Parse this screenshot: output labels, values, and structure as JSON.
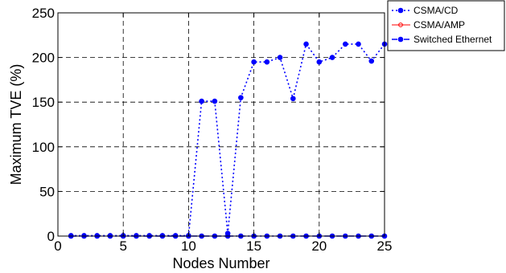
{
  "chart_data": {
    "type": "line",
    "title": "",
    "xlabel": "Nodes Number",
    "ylabel": "Maximum TVE (%)",
    "xlim": [
      0,
      25
    ],
    "ylim": [
      0,
      250
    ],
    "xticks": [
      0,
      5,
      10,
      15,
      20,
      25
    ],
    "yticks": [
      0,
      50,
      100,
      150,
      200,
      250
    ],
    "grid": true,
    "legend_position": "top-right",
    "x": [
      1,
      2,
      3,
      4,
      5,
      6,
      7,
      8,
      9,
      10,
      11,
      12,
      13,
      14,
      15,
      16,
      17,
      18,
      19,
      20,
      21,
      22,
      23,
      24,
      25
    ],
    "series": [
      {
        "name": "CSMA/CD",
        "color": "#0000ff",
        "line_style": "dotted",
        "marker": "filled-circle",
        "values": [
          0.5,
          0.5,
          0.5,
          0.5,
          0.5,
          0.5,
          0.5,
          0.5,
          0.5,
          0.5,
          151,
          151,
          3,
          155,
          195,
          195,
          200,
          154,
          215,
          195,
          200,
          215,
          215,
          196,
          215
        ]
      },
      {
        "name": "CSMA/AMP",
        "color": "#ff0000",
        "line_style": "solid",
        "marker": "open-circle",
        "values": [
          0,
          0,
          0,
          0,
          0,
          0,
          0,
          0,
          0,
          0,
          0,
          0,
          0,
          0,
          0,
          0,
          0,
          0,
          0,
          0,
          0,
          0,
          0,
          0,
          0
        ]
      },
      {
        "name": "Switched Ethernet",
        "color": "#0000ff",
        "line_style": "dashdot",
        "marker": "filled-circle",
        "values": [
          0,
          0,
          0,
          0,
          0,
          0,
          0,
          0,
          0,
          0,
          0,
          0,
          0,
          0,
          0,
          0,
          0,
          0,
          0,
          0,
          0,
          0,
          0,
          0,
          0
        ]
      }
    ]
  }
}
